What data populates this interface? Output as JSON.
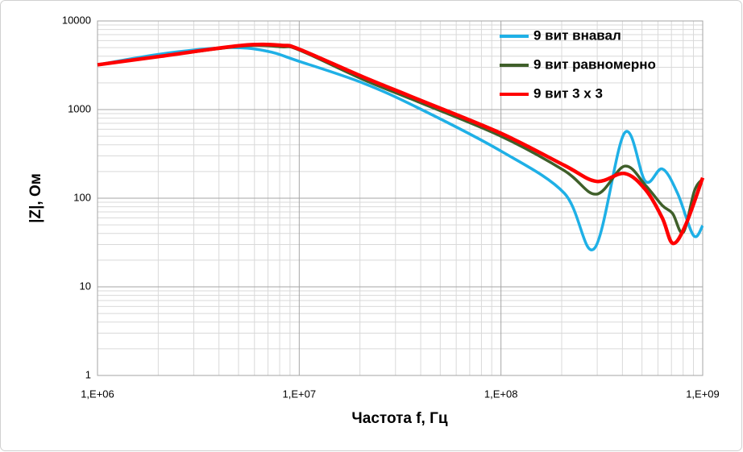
{
  "chart_data": {
    "type": "line",
    "xlabel": "Частота f, Гц",
    "ylabel": "|Z|, Ом",
    "xscale": "log",
    "yscale": "log",
    "grid": true,
    "minor_grid": true,
    "legend": "upper right",
    "xlim": [
      1000000,
      1000000000
    ],
    "ylim": [
      1,
      10000
    ],
    "xticks": [
      {
        "value": 1000000,
        "label": "1,E+06"
      },
      {
        "value": 10000000,
        "label": "1,E+07"
      },
      {
        "value": 100000000,
        "label": "1,E+08"
      },
      {
        "value": 1000000000,
        "label": "1,E+09"
      }
    ],
    "yticks": [
      1,
      10,
      100,
      1000,
      10000
    ],
    "series": [
      {
        "name": "9 вит внавал",
        "color": "#1fb0e6",
        "x": [
          1000000,
          2070000,
          4300000,
          6800000,
          10000000,
          20600000,
          39000000,
          100000000,
          206000000,
          290000000,
          410000000,
          520000000,
          630000000,
          750000000,
          900000000,
          1000000000
        ],
        "values": [
          3200,
          4240,
          5000,
          4600,
          3500,
          2000,
          1040,
          340,
          114,
          27,
          545,
          155,
          214,
          114,
          38,
          49
        ]
      },
      {
        "name": "9 вит равномерно",
        "color": "#3f5f2a",
        "x": [
          1000000,
          2070000,
          5200000,
          8200000,
          10000000,
          20600000,
          39000000,
          100000000,
          206000000,
          297000000,
          410000000,
          520000000,
          630000000,
          710000000,
          800000000,
          910000000,
          1000000000
        ],
        "values": [
          3200,
          4000,
          5200,
          5100,
          4700,
          2200,
          1220,
          500,
          205,
          111,
          230,
          140,
          83,
          67,
          41,
          121,
          165
        ]
      },
      {
        "name": "9 вит 3 х 3",
        "color": "#ff0000",
        "x": [
          1000000,
          2070000,
          5200000,
          8200000,
          10000000,
          20600000,
          39000000,
          100000000,
          206000000,
          297000000,
          410000000,
          520000000,
          630000000,
          710000000,
          820000000,
          1000000000
        ],
        "values": [
          3200,
          4000,
          5300,
          5300,
          4800,
          2350,
          1300,
          540,
          235,
          155,
          190,
          125,
          60,
          31,
          49,
          170
        ]
      }
    ]
  }
}
